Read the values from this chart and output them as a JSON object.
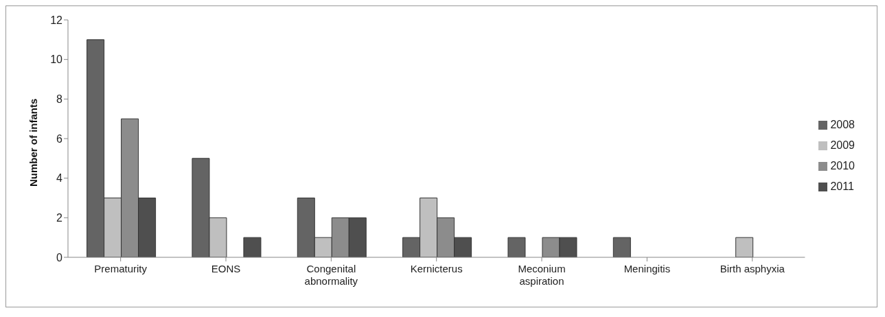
{
  "chart_data": {
    "type": "bar",
    "ylabel": "Number of infants",
    "categories": [
      "Prematurity",
      "EONS",
      "Congenital abnormality",
      "Kernicterus",
      "Meconium aspiration",
      "Meningitis",
      "Birth asphyxia"
    ],
    "series": [
      {
        "name": "2008",
        "color": "#646464",
        "values": [
          11,
          5,
          3,
          1,
          1,
          1,
          0
        ]
      },
      {
        "name": "2009",
        "color": "#bfbfbf",
        "values": [
          3,
          2,
          1,
          3,
          0,
          0,
          1
        ]
      },
      {
        "name": "2010",
        "color": "#8c8c8c",
        "values": [
          7,
          0,
          2,
          2,
          1,
          0,
          0
        ]
      },
      {
        "name": "2011",
        "color": "#4f4f4f",
        "values": [
          3,
          1,
          2,
          1,
          1,
          0,
          0
        ]
      }
    ],
    "ylim": [
      0,
      12
    ],
    "yticks": [
      0,
      2,
      4,
      6,
      8,
      10,
      12
    ],
    "grid": false,
    "legend": "right"
  }
}
